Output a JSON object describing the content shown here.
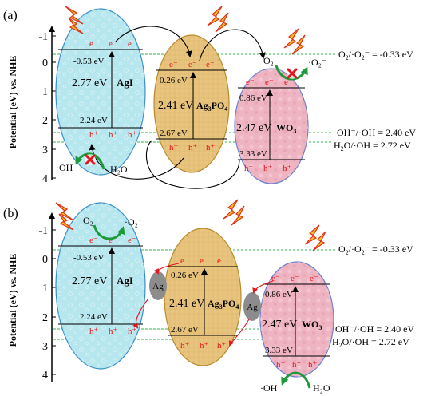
{
  "panels": [
    {
      "label": "(a)",
      "axis_label": "Potential (eV) vs. NHE",
      "ticks": [
        "-1",
        "0",
        "1",
        "2",
        "3",
        "4"
      ],
      "materials": {
        "agi": {
          "name": "AgI",
          "cb": "-0.53 eV",
          "gap": "2.77 eV",
          "vb": "2.24 eV",
          "electrons": [
            "e⁻",
            "e⁻",
            "e⁻"
          ],
          "holes": [
            "h⁺",
            "h⁺",
            "h⁺"
          ]
        },
        "ag3po4": {
          "name_parts": [
            "Ag",
            "3",
            "PO",
            "4"
          ],
          "cb": "0.26 eV",
          "gap": "2.41 eV",
          "vb": "2.67 eV",
          "electrons": [
            "e⁻",
            "e⁻",
            "e⁻"
          ],
          "holes": [
            "h⁺",
            "h⁺",
            "h⁺"
          ]
        },
        "wo3": {
          "name_parts": [
            "WO",
            "3"
          ],
          "cb": "0.86 eV",
          "gap": "2.47 eV",
          "vb": "3.33 eV",
          "electrons": [
            "e⁻",
            "e⁻",
            "e⁻"
          ],
          "holes": [
            "h⁺",
            "h⁺",
            "h⁺"
          ]
        }
      },
      "o2_label": "O₂",
      "o2rad_label": "·O₂⁻",
      "oh_rad_label": "·OH",
      "h2o_label": "H₂O"
    },
    {
      "label": "(b)",
      "axis_label": "Potential (eV) vs. NHE",
      "ticks": [
        "-1",
        "0",
        "1",
        "2",
        "3",
        "4"
      ],
      "materials": {
        "agi": {
          "name": "AgI",
          "cb": "-0.53 eV",
          "gap": "2.77 eV",
          "vb": "2.24 eV",
          "electrons": [
            "e⁻",
            "e⁻",
            "e⁻"
          ],
          "holes": [
            "h⁺",
            "h⁺",
            "h⁺"
          ]
        },
        "ag3po4": {
          "name_parts": [
            "Ag",
            "3",
            "PO",
            "4"
          ],
          "cb": "0.26 eV",
          "gap": "2.41 eV",
          "vb": "2.67 eV",
          "electrons": [
            "e⁻",
            "e⁻",
            "e⁻"
          ],
          "holes": [
            "h⁺",
            "h⁺",
            "h⁺"
          ]
        },
        "wo3": {
          "name_parts": [
            "WO",
            "3"
          ],
          "cb": "0.86 eV",
          "gap": "2.47 eV",
          "vb": "3.33 eV",
          "electrons": [
            "e⁻",
            "e⁻",
            "e⁻"
          ],
          "holes": [
            "h⁺",
            "h⁺",
            "h⁺"
          ]
        }
      },
      "ag_label": "Ag",
      "o2_label": "O₂",
      "o2rad_label": "·O₂⁻",
      "oh_rad_label": "·OH",
      "h2o_label": "H₂O"
    }
  ],
  "reference_lines": [
    {
      "parts": [
        "O",
        "2",
        "/·O",
        "2",
        "⁻ = -0.33 eV"
      ]
    },
    {
      "parts": [
        "OH⁻/·OH = 2.40 eV"
      ]
    },
    {
      "parts": [
        "H",
        "2",
        "O/·OH = 2.72 eV"
      ]
    }
  ],
  "colors": {
    "agi_fill": "#b6e6ee",
    "agi_stroke": "#3a8fc9",
    "ag3po4_fill": "#e8c47e",
    "ag3po4_stroke": "#b98a2a",
    "wo3_fill": "#eeb4c2",
    "wo3_stroke": "#6a7fd0",
    "ag_particle": "#8c8c8c",
    "electron_red": "#e8141c",
    "green_dash": "#2ab84a",
    "green_arrow": "#1f9a3a",
    "lightning": "#f3c01c",
    "lightning_edge": "#e0321a"
  },
  "icons": [
    "lightning-icon",
    "cross-mark-icon",
    "curved-arrow-icon"
  ]
}
